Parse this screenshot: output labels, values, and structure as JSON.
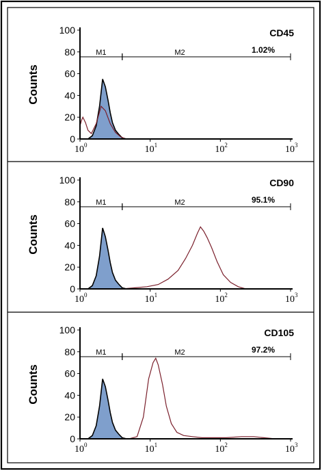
{
  "chart_data": [
    {
      "type": "area",
      "title": "CD45",
      "ylabel": "Counts",
      "ylim": [
        0,
        100
      ],
      "xlim": [
        1,
        1000
      ],
      "xscale": "log",
      "y_ticks": [
        "0",
        "20",
        "40",
        "60",
        "80",
        "100"
      ],
      "x_ticks": [
        {
          "base": "10",
          "exp": "0",
          "value": 1
        },
        {
          "base": "10",
          "exp": "1",
          "value": 10
        },
        {
          "base": "10",
          "exp": "2",
          "value": 100
        },
        {
          "base": "10",
          "exp": "3",
          "value": 1000
        }
      ],
      "gates": [
        {
          "name": "M1",
          "start": 1,
          "end": 4
        },
        {
          "name": "M2",
          "start": 4,
          "end": 1000
        }
      ],
      "percentage": "1.02%",
      "series": [
        {
          "role": "isotype",
          "color": "#7f9fcc",
          "x": [
            1.3,
            1.5,
            1.7,
            1.9,
            2.1,
            2.3,
            2.5,
            2.7,
            2.9,
            3.2,
            3.6,
            4.0,
            4.6
          ],
          "y": [
            0,
            3,
            12,
            30,
            55,
            48,
            36,
            24,
            15,
            8,
            4,
            1,
            0
          ]
        },
        {
          "role": "stained",
          "color": "#7a1f2b",
          "x": [
            1.0,
            1.05,
            1.1,
            1.2,
            1.3,
            1.45,
            1.7,
            2.0,
            2.3,
            2.7,
            3.2,
            3.8,
            4.5
          ],
          "y": [
            12,
            17,
            20,
            15,
            8,
            5,
            14,
            30,
            26,
            14,
            6,
            2,
            0
          ]
        }
      ]
    },
    {
      "type": "area",
      "title": "CD90",
      "ylabel": "Counts",
      "ylim": [
        0,
        100
      ],
      "xlim": [
        1,
        1000
      ],
      "xscale": "log",
      "y_ticks": [
        "0",
        "20",
        "40",
        "60",
        "80",
        "100"
      ],
      "x_ticks": [
        {
          "base": "10",
          "exp": "0",
          "value": 1
        },
        {
          "base": "10",
          "exp": "1",
          "value": 10
        },
        {
          "base": "10",
          "exp": "2",
          "value": 100
        },
        {
          "base": "10",
          "exp": "3",
          "value": 1000
        }
      ],
      "gates": [
        {
          "name": "M1",
          "start": 1,
          "end": 4
        },
        {
          "name": "M2",
          "start": 4,
          "end": 1000
        }
      ],
      "percentage": "95.1%",
      "series": [
        {
          "role": "isotype",
          "color": "#7f9fcc",
          "x": [
            1.3,
            1.5,
            1.7,
            1.9,
            2.1,
            2.3,
            2.5,
            2.7,
            2.9,
            3.2,
            3.6,
            4.0,
            4.6
          ],
          "y": [
            0,
            3,
            12,
            30,
            56,
            48,
            36,
            24,
            15,
            8,
            4,
            1,
            0
          ]
        },
        {
          "role": "stained",
          "color": "#7a1f2b",
          "x": [
            4,
            6,
            9,
            13,
            18,
            25,
            32,
            40,
            47,
            52,
            58,
            65,
            75,
            90,
            110,
            140,
            180,
            230
          ],
          "y": [
            0,
            1,
            2,
            4,
            9,
            17,
            28,
            40,
            51,
            57,
            53,
            47,
            38,
            25,
            13,
            6,
            2,
            0
          ]
        }
      ]
    },
    {
      "type": "area",
      "title": "CD105",
      "ylabel": "Counts",
      "ylim": [
        0,
        100
      ],
      "xlim": [
        1,
        1000
      ],
      "xscale": "log",
      "y_ticks": [
        "0",
        "20",
        "40",
        "60",
        "80",
        "100"
      ],
      "x_ticks": [
        {
          "base": "10",
          "exp": "0",
          "value": 1
        },
        {
          "base": "10",
          "exp": "1",
          "value": 10
        },
        {
          "base": "10",
          "exp": "2",
          "value": 100
        },
        {
          "base": "10",
          "exp": "3",
          "value": 1000
        }
      ],
      "gates": [
        {
          "name": "M1",
          "start": 1,
          "end": 4
        },
        {
          "name": "M2",
          "start": 4,
          "end": 1000
        }
      ],
      "percentage": "97.2%",
      "series": [
        {
          "role": "isotype",
          "color": "#7f9fcc",
          "x": [
            1.3,
            1.5,
            1.7,
            1.9,
            2.1,
            2.3,
            2.5,
            2.7,
            2.9,
            3.2,
            3.6,
            4.0,
            4.6
          ],
          "y": [
            0,
            3,
            12,
            30,
            55,
            48,
            36,
            24,
            15,
            8,
            4,
            1,
            0
          ]
        },
        {
          "role": "stained",
          "color": "#7a1f2b",
          "x": [
            5,
            6.5,
            8,
            9.5,
            11,
            12,
            13,
            15,
            17,
            20,
            24,
            30,
            40,
            55,
            80,
            120,
            200,
            300,
            420,
            600
          ],
          "y": [
            0,
            2,
            20,
            55,
            70,
            74,
            68,
            50,
            30,
            14,
            6,
            3,
            2,
            1,
            1,
            1,
            2,
            2,
            1,
            0
          ]
        }
      ]
    }
  ]
}
